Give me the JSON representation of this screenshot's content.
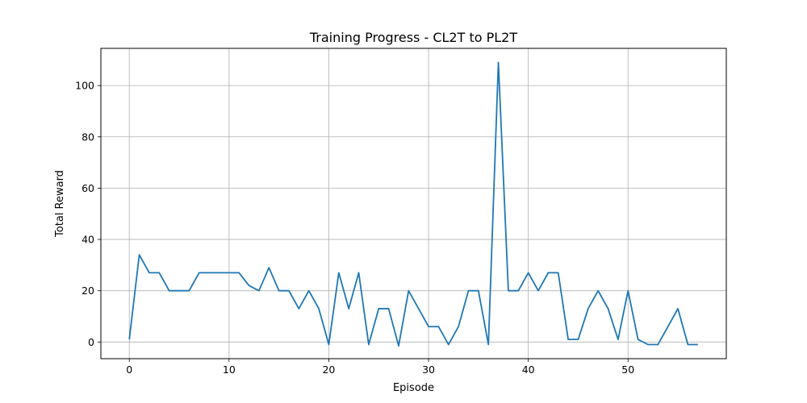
{
  "chart_data": {
    "type": "line",
    "title": "Training Progress - CL2T to PL2T",
    "xlabel": "Episode",
    "ylabel": "Total Reward",
    "xlim": [
      -2.85,
      59.85
    ],
    "ylim": [
      -6.5,
      114.5
    ],
    "xticks": [
      0,
      10,
      20,
      30,
      40,
      50
    ],
    "yticks": [
      0,
      20,
      40,
      60,
      80,
      100
    ],
    "grid": true,
    "legend": "none",
    "series": [
      {
        "color": "#1f77b4",
        "x": [
          0,
          1,
          2,
          3,
          4,
          5,
          6,
          7,
          8,
          9,
          10,
          11,
          12,
          13,
          14,
          15,
          16,
          17,
          18,
          19,
          20,
          21,
          22,
          23,
          24,
          25,
          26,
          27,
          28,
          29,
          30,
          31,
          32,
          33,
          34,
          35,
          36,
          37,
          38,
          39,
          40,
          41,
          42,
          43,
          44,
          45,
          46,
          47,
          48,
          49,
          50,
          51,
          52,
          53,
          54,
          55,
          56,
          57
        ],
        "values": [
          1,
          34,
          27,
          27,
          20,
          20,
          20,
          27,
          27,
          27,
          27,
          27,
          22,
          20,
          29,
          20,
          20,
          13,
          20,
          13,
          -1,
          27,
          13,
          27,
          -1,
          13,
          13,
          -1.5,
          20,
          13,
          6,
          6,
          -1,
          6,
          20,
          20,
          -1,
          109,
          20,
          20,
          27,
          20,
          27,
          27,
          1,
          1,
          13,
          20,
          13,
          1,
          20,
          1,
          -1,
          -1,
          6,
          13,
          -1,
          -1
        ]
      }
    ]
  }
}
